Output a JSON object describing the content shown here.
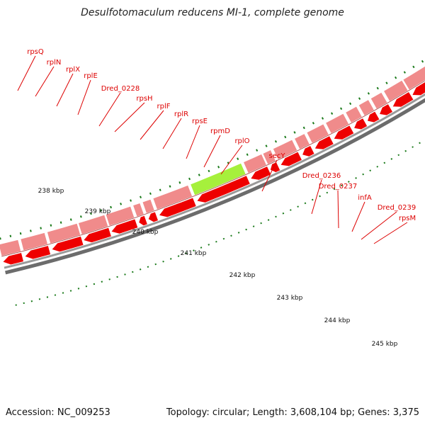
{
  "header": {
    "title": "Desulfotomaculum reducens MI-1, complete genome"
  },
  "footer": {
    "accession": "Accession: NC_009253",
    "topology": "Topology: circular; Length: 3,608,104 bp; Genes: 3,375"
  },
  "scale": {
    "tick_labels": [
      "238 kbp",
      "239 kbp",
      "240 kbp",
      "241 kbp",
      "242 kbp",
      "243 kbp",
      "244 kbp",
      "245 kbp"
    ]
  },
  "genes": [
    {
      "name": "rpsQ"
    },
    {
      "name": "rplN"
    },
    {
      "name": "rplX"
    },
    {
      "name": "rplE"
    },
    {
      "name": "Dred_0228"
    },
    {
      "name": "rpsH"
    },
    {
      "name": "rplF"
    },
    {
      "name": "rplR"
    },
    {
      "name": "rpsE"
    },
    {
      "name": "rpmD"
    },
    {
      "name": "rplO"
    },
    {
      "name": "secY"
    },
    {
      "name": "Dred_0236"
    },
    {
      "name": "Dred_0237"
    },
    {
      "name": "infA"
    },
    {
      "name": "Dred_0239"
    },
    {
      "name": "rpsM"
    }
  ],
  "colors": {
    "cds_feature": "#ee0000",
    "gene_band": "#f08b8b",
    "highlight": "#a6f03c",
    "label": "#dd0000",
    "ticks": "#1a7a1a",
    "backbone": "#808080"
  }
}
